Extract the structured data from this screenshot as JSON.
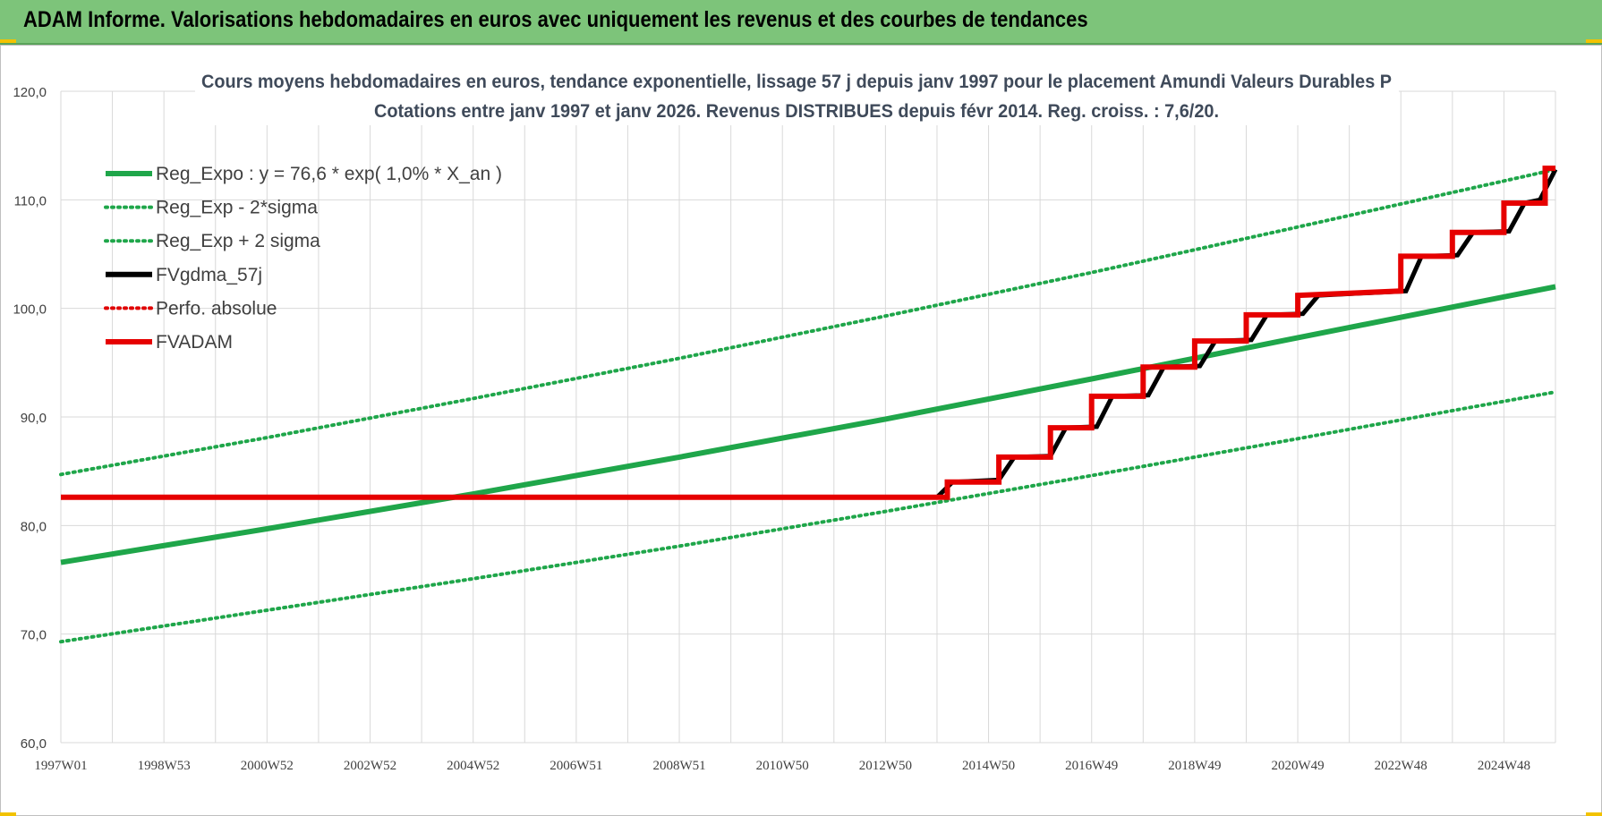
{
  "banner": {
    "title": "ADAM Informe. Valorisations hebdomadaires en euros avec uniquement les revenus et des courbes de tendances"
  },
  "chart_data": {
    "type": "line",
    "title": "Cours moyens hebdomadaires en euros, tendance exponentielle, lissage 57 j depuis janv 1997 pour le placement Amundi Valeurs Durables P",
    "subtitle": "Cotations entre janv 1997 et janv 2026. Revenus DISTRIBUES depuis févr 2014. Reg. croiss. : 7,6/20.",
    "xlabel": "",
    "ylabel": "",
    "xlim": [
      1997.0,
      2026.0
    ],
    "ylim": [
      60,
      120
    ],
    "y_ticks": [
      "60,0",
      "70,0",
      "80,0",
      "90,0",
      "100,0",
      "110,0",
      "120,0"
    ],
    "x_ticks": [
      {
        "label": "1997W01",
        "x": 1997.0
      },
      {
        "label": "1998W53",
        "x": 1999.0
      },
      {
        "label": "2000W52",
        "x": 2001.0
      },
      {
        "label": "2002W52",
        "x": 2003.0
      },
      {
        "label": "2004W52",
        "x": 2005.0
      },
      {
        "label": "2006W51",
        "x": 2007.0
      },
      {
        "label": "2008W51",
        "x": 2009.0
      },
      {
        "label": "2010W50",
        "x": 2011.0
      },
      {
        "label": "2012W50",
        "x": 2013.0
      },
      {
        "label": "2014W50",
        "x": 2015.0
      },
      {
        "label": "2016W49",
        "x": 2017.0
      },
      {
        "label": "2018W49",
        "x": 2019.0
      },
      {
        "label": "2020W49",
        "x": 2021.0
      },
      {
        "label": "2022W48",
        "x": 2023.0
      },
      {
        "label": "2024W48",
        "x": 2025.0
      }
    ],
    "grid": true,
    "legend_position": "top-left",
    "series": [
      {
        "name": "Reg_Expo : y = 76,6 * exp( 1,0% *  X_an )",
        "color": "#1fa64a",
        "style": "solid",
        "points": [
          [
            1997.0,
            76.6
          ],
          [
            2001.0,
            79.7
          ],
          [
            2005.0,
            82.9
          ],
          [
            2009.0,
            86.3
          ],
          [
            2013.0,
            89.8
          ],
          [
            2017.0,
            93.5
          ],
          [
            2021.0,
            97.3
          ],
          [
            2026.0,
            102.0
          ]
        ]
      },
      {
        "name": "Reg_Exp - 2*sigma",
        "color": "#1fa64a",
        "style": "dotted",
        "points": [
          [
            1997.0,
            69.3
          ],
          [
            2001.0,
            72.2
          ],
          [
            2005.0,
            75.1
          ],
          [
            2009.0,
            78.1
          ],
          [
            2013.0,
            81.3
          ],
          [
            2017.0,
            84.6
          ],
          [
            2021.0,
            88.0
          ],
          [
            2026.0,
            92.3
          ]
        ]
      },
      {
        "name": "Reg_Exp + 2 sigma",
        "color": "#1fa64a",
        "style": "dotted",
        "points": [
          [
            1997.0,
            84.7
          ],
          [
            2001.0,
            88.1
          ],
          [
            2005.0,
            91.7
          ],
          [
            2009.0,
            95.4
          ],
          [
            2013.0,
            99.3
          ],
          [
            2017.0,
            103.3
          ],
          [
            2021.0,
            107.5
          ],
          [
            2026.0,
            112.8
          ]
        ]
      },
      {
        "name": "FVgdma_57j",
        "color": "#000000",
        "style": "solid",
        "points": [
          [
            1997.0,
            82.6
          ],
          [
            2014.0,
            82.6
          ],
          [
            2014.3,
            84.0
          ],
          [
            2015.2,
            84.2
          ],
          [
            2015.5,
            86.3
          ],
          [
            2016.2,
            86.4
          ],
          [
            2016.5,
            89.0
          ],
          [
            2017.1,
            89.1
          ],
          [
            2017.4,
            91.9
          ],
          [
            2018.1,
            92.0
          ],
          [
            2018.4,
            94.6
          ],
          [
            2019.1,
            94.7
          ],
          [
            2019.4,
            97.0
          ],
          [
            2020.1,
            97.1
          ],
          [
            2020.4,
            99.4
          ],
          [
            2021.1,
            99.5
          ],
          [
            2021.4,
            101.2
          ],
          [
            2023.1,
            101.6
          ],
          [
            2023.4,
            104.8
          ],
          [
            2024.1,
            104.9
          ],
          [
            2024.4,
            107.0
          ],
          [
            2025.1,
            107.1
          ],
          [
            2025.4,
            109.7
          ],
          [
            2025.7,
            110.0
          ],
          [
            2026.0,
            112.8
          ]
        ]
      },
      {
        "name": "Perfo. absolue",
        "color": "#e00000",
        "style": "dotted",
        "points": []
      },
      {
        "name": "FVADAM",
        "color": "#e60000",
        "style": "solid",
        "points": [
          [
            1997.0,
            82.6
          ],
          [
            2014.2,
            82.6
          ],
          [
            2014.2,
            84.0
          ],
          [
            2015.2,
            84.0
          ],
          [
            2015.2,
            86.3
          ],
          [
            2016.2,
            86.3
          ],
          [
            2016.2,
            89.0
          ],
          [
            2017.0,
            89.0
          ],
          [
            2017.0,
            91.9
          ],
          [
            2018.0,
            91.9
          ],
          [
            2018.0,
            94.6
          ],
          [
            2019.0,
            94.6
          ],
          [
            2019.0,
            97.0
          ],
          [
            2020.0,
            97.0
          ],
          [
            2020.0,
            99.4
          ],
          [
            2021.0,
            99.4
          ],
          [
            2021.0,
            101.2
          ],
          [
            2022.0,
            101.4
          ],
          [
            2023.0,
            101.6
          ],
          [
            2023.0,
            104.8
          ],
          [
            2024.0,
            104.8
          ],
          [
            2024.0,
            107.0
          ],
          [
            2025.0,
            107.0
          ],
          [
            2025.0,
            109.7
          ],
          [
            2025.8,
            109.7
          ],
          [
            2025.8,
            112.9
          ],
          [
            2026.0,
            112.9
          ]
        ]
      }
    ]
  }
}
